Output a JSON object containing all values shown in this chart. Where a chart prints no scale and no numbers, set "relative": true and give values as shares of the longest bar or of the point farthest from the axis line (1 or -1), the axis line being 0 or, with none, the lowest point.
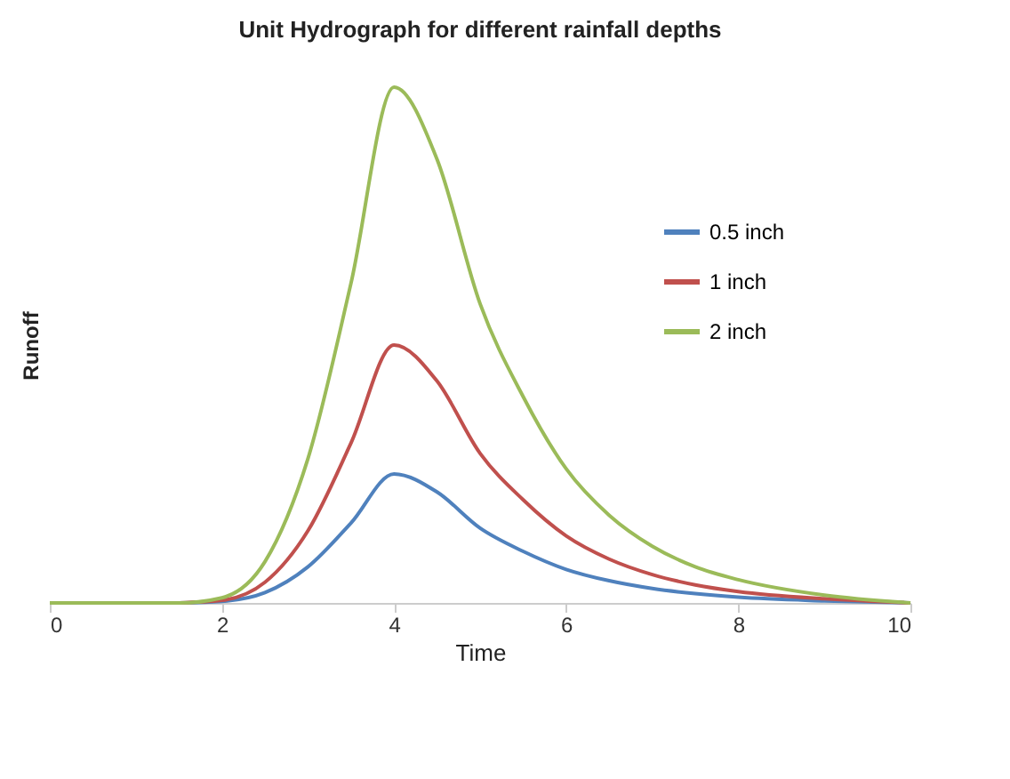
{
  "chart_data": {
    "type": "line",
    "title": "Unit Hydrograph for different rainfall depths",
    "xlabel": "Time",
    "ylabel": "Runoff",
    "relative": true,
    "x": [
      0,
      1,
      1.5,
      2,
      2.5,
      3,
      3.5,
      4,
      4.5,
      5,
      5.5,
      6,
      6.5,
      7,
      7.5,
      8,
      9,
      10
    ],
    "xlim": [
      0,
      10
    ],
    "xticks": [
      0,
      2,
      4,
      6,
      8,
      10
    ],
    "series": [
      {
        "name": "0.5 inch",
        "color": "#4f81bd",
        "values": [
          null,
          null,
          0,
          0.003,
          0.02,
          0.07,
          0.155,
          0.25,
          0.215,
          0.145,
          0.1,
          0.065,
          0.043,
          0.028,
          0.018,
          0.011,
          0.004,
          0
        ]
      },
      {
        "name": "1 inch",
        "color": "#c0504d",
        "values": [
          null,
          null,
          0,
          0.005,
          0.04,
          0.14,
          0.31,
          0.5,
          0.43,
          0.29,
          0.2,
          0.13,
          0.085,
          0.055,
          0.035,
          0.022,
          0.008,
          0
        ]
      },
      {
        "name": "2 inch",
        "color": "#9bbb59",
        "values": [
          0,
          0,
          0,
          0.01,
          0.08,
          0.28,
          0.62,
          1,
          0.86,
          0.58,
          0.4,
          0.26,
          0.17,
          0.11,
          0.07,
          0.045,
          0.015,
          0
        ]
      }
    ],
    "legend": "top right",
    "grid": false,
    "marker": "none",
    "line_style": "solid"
  }
}
